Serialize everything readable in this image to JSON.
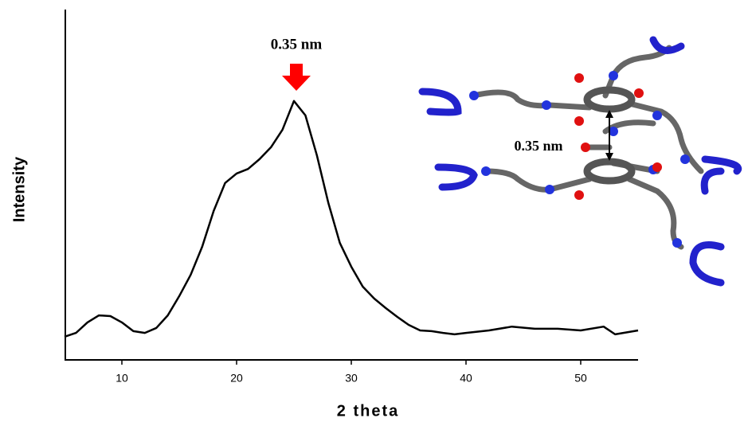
{
  "chart_data": {
    "type": "line",
    "x_label": "2 theta",
    "y_label": "Intensity",
    "annotations": [
      "0.35 nm",
      "0.35 nm"
    ],
    "x": [
      5,
      6,
      7,
      8,
      9,
      10,
      11,
      12,
      13,
      14,
      15,
      16,
      17,
      18,
      19,
      20,
      21,
      22,
      23,
      24,
      25,
      26,
      27,
      28,
      29,
      30,
      31,
      32,
      33,
      34,
      35,
      36,
      37,
      38,
      39,
      40,
      42,
      44,
      46,
      48,
      50,
      52,
      53,
      55
    ],
    "values": [
      6.6,
      7.7,
      10.7,
      12.7,
      12.5,
      10.7,
      8.2,
      7.7,
      9.1,
      12.7,
      18.2,
      24.3,
      32.3,
      42.5,
      50.5,
      53.2,
      54.5,
      57.3,
      60.7,
      65.7,
      73.9,
      69.8,
      58.4,
      44.8,
      33.4,
      26.6,
      20.9,
      17.5,
      14.8,
      12.3,
      10,
      8.4,
      8.2,
      7.7,
      7.3,
      7.7,
      8.4,
      9.5,
      8.9,
      8.9,
      8.4,
      9.5,
      7.3,
      8.4
    ],
    "color": "#000000",
    "xlim": [
      5,
      55
    ],
    "xticks": [
      10,
      20,
      30,
      40,
      50
    ],
    "ylim": [
      0,
      100
    ]
  }
}
